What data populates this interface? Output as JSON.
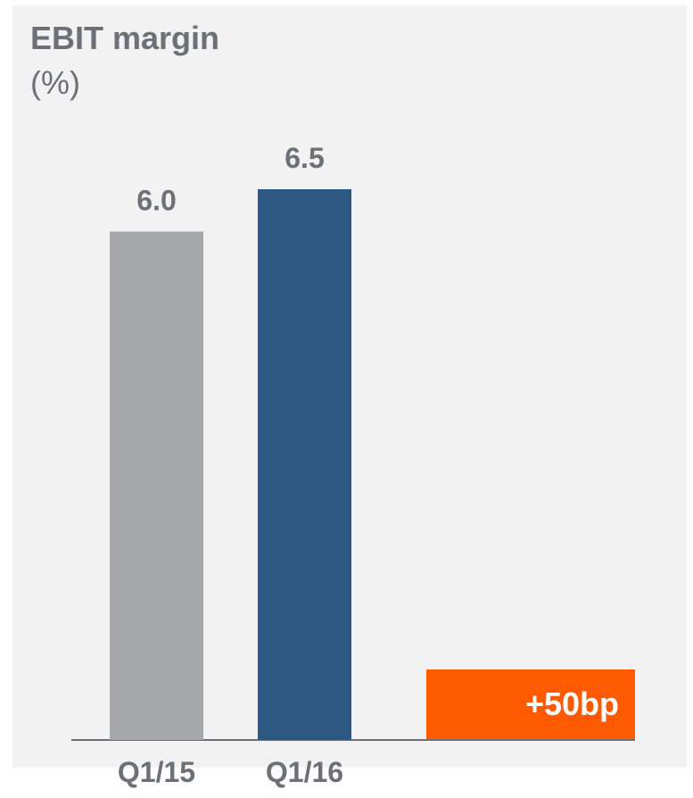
{
  "chart_data": {
    "type": "bar",
    "title": "EBIT margin",
    "subtitle": "(%)",
    "categories": [
      "Q1/15",
      "Q1/16"
    ],
    "values": [
      6.0,
      6.5
    ],
    "value_labels": [
      "6.0",
      "6.5"
    ],
    "colors": [
      "#a5a8ab",
      "#2d5882"
    ],
    "annotation": "+50bp",
    "annotation_color": "#ff5a00",
    "ylim": [
      0,
      6.5
    ]
  }
}
